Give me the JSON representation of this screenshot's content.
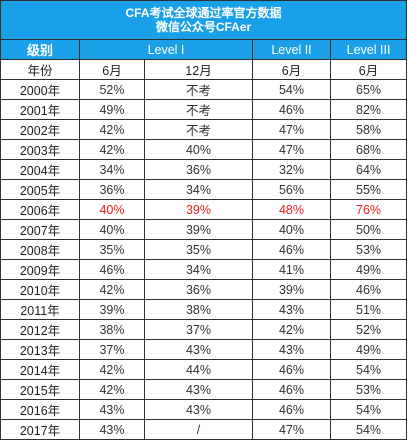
{
  "title_line1": "CFA考试全球通过率官方数据",
  "title_line2": "微信公众号CFAer",
  "header": {
    "label": "级别",
    "levels": [
      "Level I",
      "Level II",
      "Level III"
    ]
  },
  "subheader": {
    "label": "年份",
    "cols": [
      "6月",
      "12月",
      "6月",
      "6月"
    ]
  },
  "highlight_color": "#e8201c",
  "header_bg": "#1aa0e8",
  "rows": [
    {
      "year": "2000年",
      "l1_jun": "52%",
      "l1_dec": "不考",
      "l2": "54%",
      "l3": "65%"
    },
    {
      "year": "2001年",
      "l1_jun": "49%",
      "l1_dec": "不考",
      "l2": "46%",
      "l3": "82%"
    },
    {
      "year": "2002年",
      "l1_jun": "42%",
      "l1_dec": "不考",
      "l2": "47%",
      "l3": "58%"
    },
    {
      "year": "2003年",
      "l1_jun": "42%",
      "l1_dec": "40%",
      "l2": "47%",
      "l3": "68%"
    },
    {
      "year": "2004年",
      "l1_jun": "34%",
      "l1_dec": "36%",
      "l2": "32%",
      "l3": "64%"
    },
    {
      "year": "2005年",
      "l1_jun": "36%",
      "l1_dec": "34%",
      "l2": "56%",
      "l3": "55%"
    },
    {
      "year": "2006年",
      "l1_jun": "40%",
      "l1_dec": "39%",
      "l2": "48%",
      "l3": "76%",
      "highlight": true
    },
    {
      "year": "2007年",
      "l1_jun": "40%",
      "l1_dec": "39%",
      "l2": "40%",
      "l3": "50%"
    },
    {
      "year": "2008年",
      "l1_jun": "35%",
      "l1_dec": "35%",
      "l2": "46%",
      "l3": "53%"
    },
    {
      "year": "2009年",
      "l1_jun": "46%",
      "l1_dec": "34%",
      "l2": "41%",
      "l3": "49%"
    },
    {
      "year": "2010年",
      "l1_jun": "42%",
      "l1_dec": "36%",
      "l2": "39%",
      "l3": "46%"
    },
    {
      "year": "2011年",
      "l1_jun": "39%",
      "l1_dec": "38%",
      "l2": "43%",
      "l3": "51%"
    },
    {
      "year": "2012年",
      "l1_jun": "38%",
      "l1_dec": "37%",
      "l2": "42%",
      "l3": "52%"
    },
    {
      "year": "2013年",
      "l1_jun": "37%",
      "l1_dec": "43%",
      "l2": "43%",
      "l3": "49%"
    },
    {
      "year": "2014年",
      "l1_jun": "42%",
      "l1_dec": "44%",
      "l2": "46%",
      "l3": "54%"
    },
    {
      "year": "2015年",
      "l1_jun": "42%",
      "l1_dec": "43%",
      "l2": "46%",
      "l3": "53%"
    },
    {
      "year": "2016年",
      "l1_jun": "43%",
      "l1_dec": "43%",
      "l2": "46%",
      "l3": "54%"
    },
    {
      "year": "2017年",
      "l1_jun": "43%",
      "l1_dec": "/",
      "l2": "47%",
      "l3": "54%"
    }
  ]
}
